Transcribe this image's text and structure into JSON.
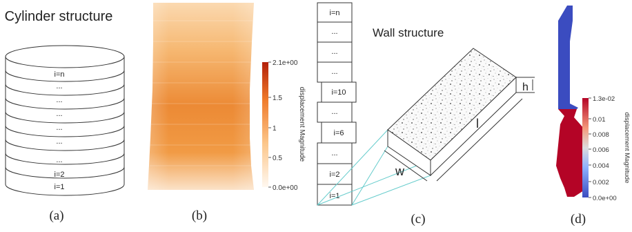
{
  "panel_a": {
    "title": "Cylinder structure",
    "layer_labels": [
      "i=n",
      "...",
      "...",
      "...",
      "...",
      "...",
      "...",
      "i=2",
      "i=1"
    ],
    "caption": "(a)"
  },
  "panel_b": {
    "colorbar": {
      "title": "displacement Magnitude",
      "ticks": [
        "2.1e+00",
        "1.5",
        "1",
        "0.5",
        "0.0e+00"
      ]
    },
    "caption": "(b)"
  },
  "panel_c": {
    "title": "Wall structure",
    "column_labels": [
      "i=n",
      "...",
      "...",
      "...",
      "i=10",
      "...",
      "i=6",
      "...",
      "i=2",
      "i=1"
    ],
    "dim_height": "h",
    "dim_length": "l",
    "dim_width": "w",
    "caption": "(c)"
  },
  "panel_d": {
    "colorbar": {
      "title": "displacement Magnitude",
      "ticks": [
        "1.3e-02",
        "0.01",
        "0.008",
        "0.006",
        "0.004",
        "0.002",
        "0.0e+00"
      ]
    },
    "caption": "(d)"
  },
  "colors": {
    "outline": "#333333",
    "cyan_lines": "#66cccc",
    "deform_low": "#3b4cc0",
    "deform_high": "#b40426",
    "orange_low": "#fff5ea",
    "orange_mid": "#f39a3c",
    "orange_high": "#b3200a"
  }
}
